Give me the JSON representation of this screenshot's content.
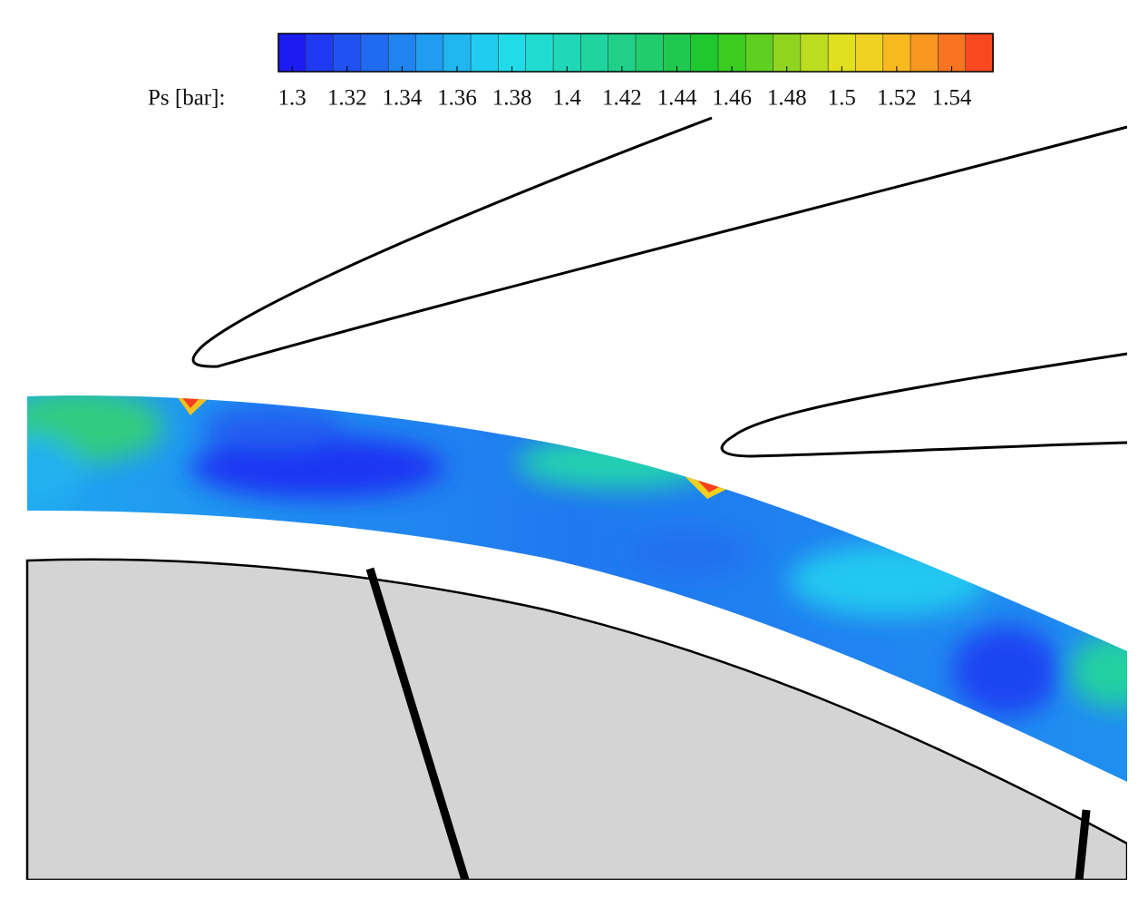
{
  "chart_data": {
    "type": "contour",
    "colorbar_label": "Ps [bar]:",
    "clim": [
      1.295,
      1.555
    ],
    "cticks": [
      1.3,
      1.32,
      1.34,
      1.36,
      1.38,
      1.4,
      1.42,
      1.44,
      1.46,
      1.48,
      1.5,
      1.52,
      1.54
    ],
    "colors": [
      "#1c1cf2",
      "#1f3af2",
      "#2052f2",
      "#206bf0",
      "#2084f0",
      "#209cf0",
      "#20b6f0",
      "#20ccf0",
      "#20dce8",
      "#20dcd0",
      "#20d8b8",
      "#20d4a0",
      "#20d088",
      "#20cc6c",
      "#20c850",
      "#20c830",
      "#3acc20",
      "#60d020",
      "#90d420",
      "#bcdc20",
      "#e0e020",
      "#f0d020",
      "#f8b820",
      "#f89820",
      "#f87420",
      "#f84820"
    ]
  }
}
